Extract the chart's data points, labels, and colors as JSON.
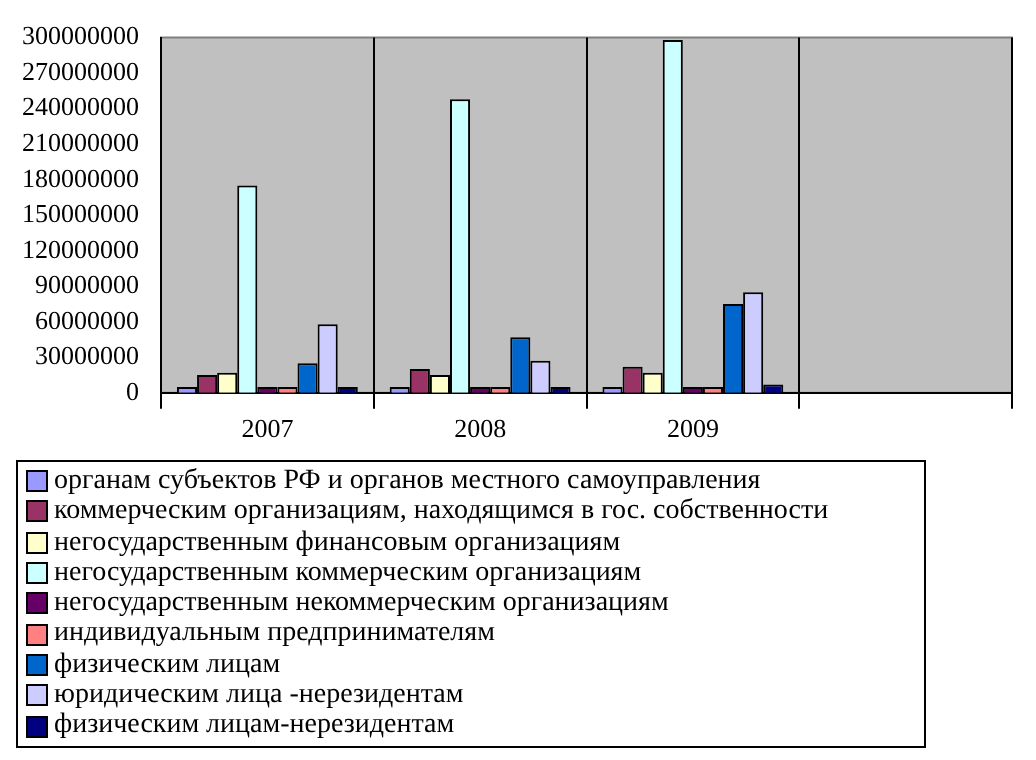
{
  "chart_data": {
    "type": "bar",
    "categories": [
      "2007",
      "2008",
      "2009",
      null
    ],
    "series": [
      {
        "name": "органам субъектов РФ и органов местного самоуправления",
        "color": "#9999ff",
        "values": [
          5000000,
          5000000,
          5000000,
          null
        ]
      },
      {
        "name": "коммерческим организациям, находящимся в гос. собственности",
        "color": "#993366",
        "values": [
          15000000,
          20000000,
          22000000,
          null
        ]
      },
      {
        "name": "негосударственным финансовым организациям",
        "color": "#ffffcc",
        "values": [
          17000000,
          15000000,
          17000000,
          null
        ]
      },
      {
        "name": "негосударственным коммерческим организациям",
        "color": "#ccffff",
        "values": [
          175000000,
          248000000,
          298000000,
          null
        ]
      },
      {
        "name": "негосударственным некоммерческим организациям",
        "color": "#660066",
        "values": [
          5000000,
          5000000,
          5000000,
          null
        ]
      },
      {
        "name": "индивидуальным предпринимателям",
        "color": "#ff8080",
        "values": [
          5000000,
          5000000,
          5000000,
          null
        ]
      },
      {
        "name": "физическим лицам",
        "color": "#0066cc",
        "values": [
          25000000,
          47000000,
          75000000,
          null
        ]
      },
      {
        "name": "юридическим лица -нерезидентам",
        "color": "#ccccff",
        "values": [
          58000000,
          27000000,
          85000000,
          null
        ]
      },
      {
        "name": "физическим лицам-нерезидентам",
        "color": "#000080",
        "values": [
          5000000,
          5000000,
          7000000,
          null
        ]
      }
    ],
    "ylim": [
      0,
      300000000
    ],
    "yticks": [
      0,
      30000000,
      60000000,
      90000000,
      120000000,
      150000000,
      180000000,
      210000000,
      240000000,
      270000000,
      300000000
    ],
    "grid": "x",
    "legend": "bottom"
  }
}
